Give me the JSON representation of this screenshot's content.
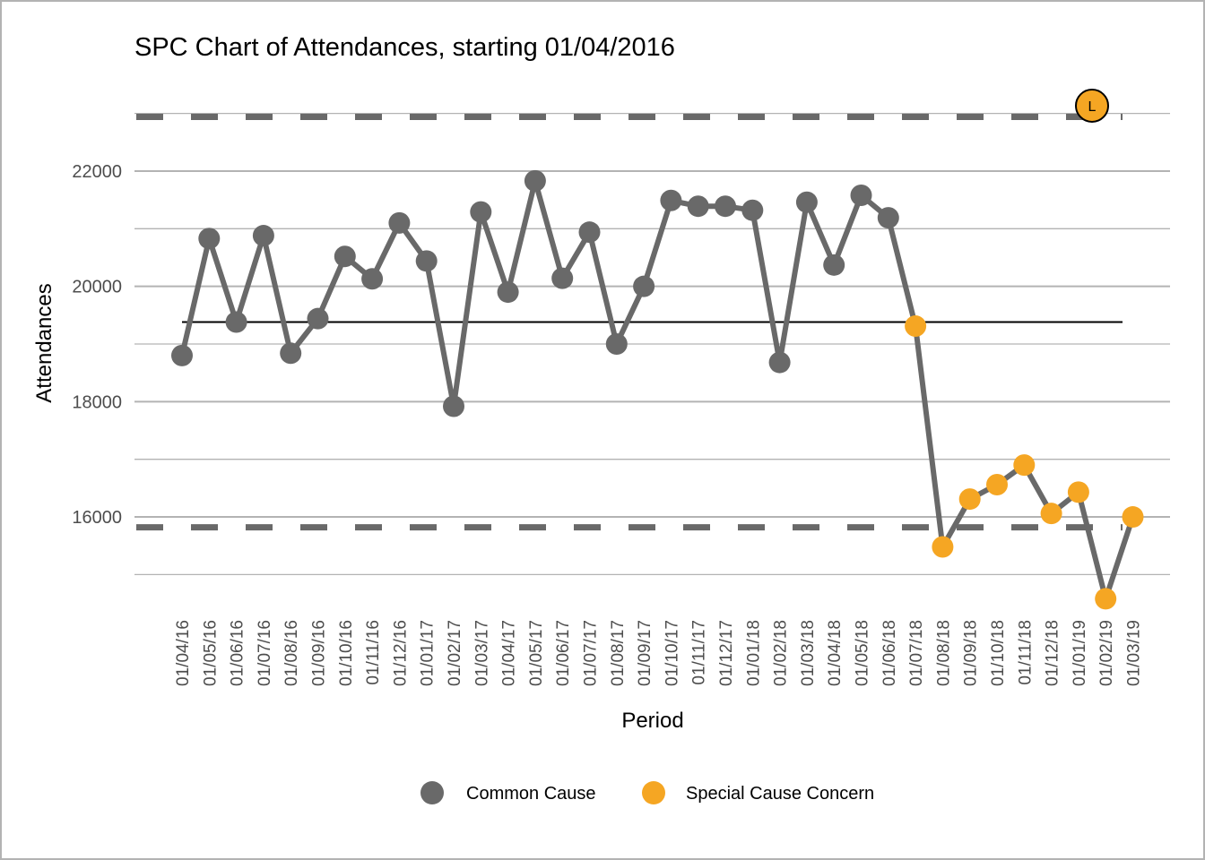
{
  "chart_data": {
    "type": "line",
    "title": "SPC Chart of Attendances, starting 01/04/2016",
    "xlabel": "Period",
    "ylabel": "Attendances",
    "ylim": [
      14400,
      23600
    ],
    "yticks": [
      16000,
      18000,
      20000,
      22000
    ],
    "grid": true,
    "legend_position": "bottom",
    "categories": [
      "01/04/16",
      "01/05/16",
      "01/06/16",
      "01/07/16",
      "01/08/16",
      "01/09/16",
      "01/10/16",
      "01/11/16",
      "01/12/16",
      "01/01/17",
      "01/02/17",
      "01/03/17",
      "01/04/17",
      "01/05/17",
      "01/06/17",
      "01/07/17",
      "01/08/17",
      "01/09/17",
      "01/10/17",
      "01/11/17",
      "01/12/17",
      "01/01/18",
      "01/02/18",
      "01/03/18",
      "01/04/18",
      "01/05/18",
      "01/06/18",
      "01/07/18",
      "01/08/18",
      "01/09/18",
      "01/10/18",
      "01/11/18",
      "01/12/18",
      "01/01/19",
      "01/02/19",
      "01/03/19"
    ],
    "values": [
      18800,
      20830,
      19380,
      20880,
      18840,
      19440,
      20520,
      20130,
      21100,
      20440,
      17920,
      21290,
      19900,
      21830,
      20140,
      20940,
      19000,
      20000,
      21490,
      21390,
      21390,
      21320,
      18680,
      21460,
      20370,
      21580,
      21190,
      19310,
      15480,
      16310,
      16560,
      16900,
      16060,
      16430,
      14580,
      16000
    ],
    "special_cause_flags": [
      false,
      false,
      false,
      false,
      false,
      false,
      false,
      false,
      false,
      false,
      false,
      false,
      false,
      false,
      false,
      false,
      false,
      false,
      false,
      false,
      false,
      false,
      false,
      false,
      false,
      false,
      false,
      true,
      true,
      true,
      true,
      true,
      true,
      true,
      true,
      true
    ],
    "mean": 19380,
    "upper_control_limit": 22940,
    "lower_control_limit": 15820,
    "legend": [
      {
        "label": "Common Cause",
        "color": "#696969"
      },
      {
        "label": "Special Cause Concern",
        "color": "#f5a623"
      }
    ],
    "trend_icon": {
      "label": "L",
      "color": "#f5a623"
    }
  },
  "colors": {
    "line": "#696969",
    "common": "#696969",
    "special": "#f5a623",
    "mean": "#000000",
    "limits": "#696969",
    "grid": "#b3b3b3"
  }
}
